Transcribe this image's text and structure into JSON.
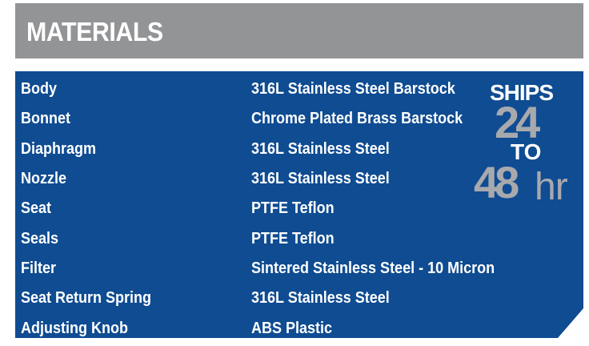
{
  "header": {
    "title": "MATERIALS"
  },
  "materials": [
    {
      "part": "Body",
      "material": "316L Stainless Steel Barstock"
    },
    {
      "part": "Bonnet",
      "material": "Chrome Plated Brass Barstock"
    },
    {
      "part": "Diaphragm",
      "material": "316L Stainless Steel"
    },
    {
      "part": "Nozzle",
      "material": "316L Stainless Steel"
    },
    {
      "part": "Seat",
      "material": "PTFE Teflon"
    },
    {
      "part": "Seals",
      "material": "PTFE Teflon"
    },
    {
      "part": "Filter",
      "material": "Sintered Stainless Steel - 10 Micron"
    },
    {
      "part": "Seat Return Spring",
      "material": "316L Stainless Steel"
    },
    {
      "part": "Adjusting Knob",
      "material": "ABS Plastic"
    }
  ],
  "badge": {
    "ships": "SHIPS",
    "from": "24",
    "to": "TO",
    "until": "48",
    "unit": "hr"
  },
  "colors": {
    "header_bg": "#939496",
    "panel_bg": "#0f4c92",
    "badge_gray": "#a8a9ad"
  }
}
